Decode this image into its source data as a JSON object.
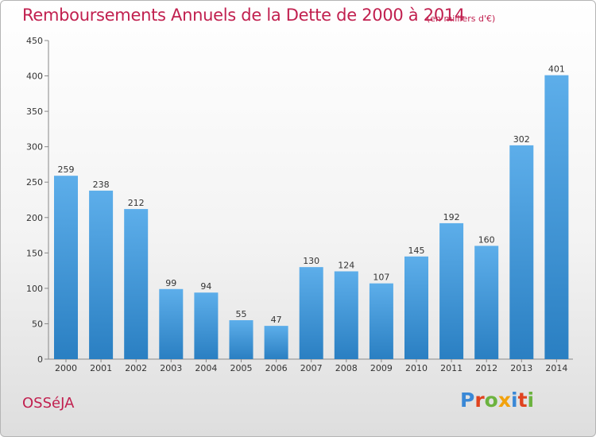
{
  "header": {
    "title": "Remboursements Annuels de la Dette de 2000 à 2014",
    "unit": "(en milliers d'€)"
  },
  "footer": {
    "commune": "OSSéJA",
    "logo_text": "Proxiti",
    "logo_colors": [
      "#3a88d6",
      "#e0431f",
      "#6cb33f",
      "#f2a20c",
      "#3a88d6",
      "#e0431f",
      "#6cb33f"
    ]
  },
  "chart_data": {
    "type": "bar",
    "categories": [
      "2000",
      "2001",
      "2002",
      "2003",
      "2004",
      "2005",
      "2006",
      "2007",
      "2008",
      "2009",
      "2010",
      "2011",
      "2012",
      "2013",
      "2014"
    ],
    "values": [
      259,
      238,
      212,
      99,
      94,
      55,
      47,
      130,
      124,
      107,
      145,
      192,
      160,
      302,
      401
    ],
    "ylim": [
      0,
      450
    ],
    "yticks": [
      0,
      50,
      100,
      150,
      200,
      250,
      300,
      350,
      400,
      450
    ],
    "grid": false,
    "bar_color_light": "#5daeea",
    "bar_color_dark": "#2a7fc2"
  }
}
